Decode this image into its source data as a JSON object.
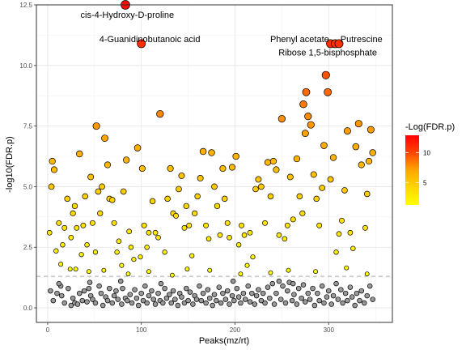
{
  "chart_data": {
    "type": "scatter",
    "xlabel": "Peaks(mz/rt)",
    "ylabel": "-log10(FDR.p)",
    "xlim": [
      -12,
      368
    ],
    "ylim": [
      -0.6,
      12.5
    ],
    "xticks": [
      0,
      100,
      200,
      300
    ],
    "yticks": [
      0.0,
      2.5,
      5.0,
      7.5,
      10.0,
      12.5
    ],
    "ytick_labels": [
      "0.0",
      "2.5",
      "5.0",
      "7.5",
      "10.0",
      "12.5"
    ],
    "grid": true,
    "threshold": 1.3,
    "legend": {
      "title": "-Log(FDR.p)",
      "ticks": [
        5,
        10
      ],
      "range": [
        1.3,
        12.9
      ],
      "colors": [
        "#ffff00",
        "#ffd700",
        "#ffa500",
        "#ff4500",
        "#ff0000"
      ],
      "position": "right"
    },
    "annotations": [
      {
        "text": "cis-4-Hydroxy-D-proline",
        "x": 85,
        "y": 12.1,
        "anchor": "middle"
      },
      {
        "text": "4-Guanidinobutanoic acid",
        "x": 109,
        "y": 11.1,
        "anchor": "middle"
      },
      {
        "text": "Phenyl acetate",
        "x": 269,
        "y": 11.1,
        "anchor": "middle"
      },
      {
        "text": "Putrescine",
        "x": 335,
        "y": 11.1,
        "anchor": "middle"
      },
      {
        "text": "Ribose 1,5-bisphosphate",
        "x": 299,
        "y": 10.55,
        "anchor": "middle"
      }
    ],
    "points": [
      [
        3,
        0.7
      ],
      [
        6,
        0.3
      ],
      [
        10,
        0.6
      ],
      [
        14,
        0.9
      ],
      [
        15,
        0.5
      ],
      [
        18,
        0.2
      ],
      [
        22,
        0.8
      ],
      [
        25,
        0.1
      ],
      [
        27,
        0.4
      ],
      [
        29,
        0.2
      ],
      [
        32,
        0.15
      ],
      [
        34,
        0.6
      ],
      [
        37,
        0.3
      ],
      [
        39,
        0.7
      ],
      [
        42,
        0.25
      ],
      [
        44,
        0.8
      ],
      [
        46,
        0.5
      ],
      [
        48,
        0.35
      ],
      [
        51,
        0.2
      ],
      [
        55,
        0.9
      ],
      [
        57,
        0.6
      ],
      [
        59,
        0.1
      ],
      [
        62,
        0.45
      ],
      [
        64,
        0.3
      ],
      [
        66,
        0.8
      ],
      [
        69,
        0.2
      ],
      [
        71,
        0.5
      ],
      [
        73,
        0.7
      ],
      [
        75,
        0.35
      ],
      [
        79,
        0.15
      ],
      [
        80,
        0.8
      ],
      [
        83,
        0.4
      ],
      [
        85,
        0.3
      ],
      [
        88,
        0.55
      ],
      [
        90,
        0.2
      ],
      [
        93,
        0.75
      ],
      [
        95,
        0.4
      ],
      [
        97,
        0.1
      ],
      [
        100,
        0.6
      ],
      [
        102,
        0.3
      ],
      [
        104,
        0.9
      ],
      [
        106,
        0.2
      ],
      [
        108,
        0.5
      ],
      [
        111,
        0.7
      ],
      [
        113,
        0.35
      ],
      [
        115,
        0.15
      ],
      [
        118,
        0.6
      ],
      [
        120,
        0.3
      ],
      [
        123,
        0.2
      ],
      [
        125,
        0.8
      ],
      [
        127,
        0.4
      ],
      [
        130,
        0.55
      ],
      [
        132,
        0.2
      ],
      [
        134,
        0.7
      ],
      [
        136,
        0.35
      ],
      [
        139,
        0.1
      ],
      [
        141,
        0.6
      ],
      [
        143,
        0.45
      ],
      [
        146,
        0.2
      ],
      [
        148,
        0.8
      ],
      [
        150,
        0.3
      ],
      [
        152,
        0.65
      ],
      [
        155,
        0.15
      ],
      [
        157,
        0.5
      ],
      [
        159,
        0.35
      ],
      [
        162,
        0.9
      ],
      [
        164,
        0.3
      ],
      [
        166,
        0.6
      ],
      [
        169,
        0.2
      ],
      [
        171,
        0.75
      ],
      [
        173,
        0.4
      ],
      [
        176,
        0.1
      ],
      [
        178,
        0.55
      ],
      [
        180,
        0.3
      ],
      [
        183,
        0.85
      ],
      [
        185,
        0.2
      ],
      [
        187,
        0.6
      ],
      [
        190,
        0.35
      ],
      [
        192,
        0.7
      ],
      [
        194,
        0.15
      ],
      [
        197,
        0.5
      ],
      [
        199,
        0.3
      ],
      [
        202,
        0.8
      ],
      [
        204,
        0.45
      ],
      [
        206,
        0.2
      ],
      [
        209,
        0.6
      ],
      [
        211,
        0.35
      ],
      [
        214,
        0.9
      ],
      [
        216,
        0.25
      ],
      [
        218,
        0.6
      ],
      [
        221,
        0.15
      ],
      [
        223,
        0.5
      ],
      [
        225,
        0.75
      ],
      [
        228,
        0.3
      ],
      [
        230,
        0.6
      ],
      [
        232,
        0.2
      ],
      [
        235,
        0.85
      ],
      [
        237,
        0.4
      ],
      [
        240,
        1.0
      ],
      [
        242,
        0.15
      ],
      [
        244,
        0.6
      ],
      [
        247,
        1.1
      ],
      [
        249,
        0.35
      ],
      [
        251,
        0.9
      ],
      [
        254,
        0.2
      ],
      [
        256,
        0.7
      ],
      [
        258,
        1.05
      ],
      [
        261,
        0.3
      ],
      [
        263,
        0.55
      ],
      [
        266,
        0.15
      ],
      [
        268,
        0.8
      ],
      [
        271,
        0.4
      ],
      [
        273,
        0.95
      ],
      [
        275,
        0.25
      ],
      [
        278,
        0.6
      ],
      [
        280,
        0.35
      ],
      [
        283,
        0.8
      ],
      [
        285,
        0.1
      ],
      [
        288,
        0.6
      ],
      [
        290,
        0.3
      ],
      [
        293,
        0.9
      ],
      [
        295,
        0.2
      ],
      [
        298,
        0.45
      ],
      [
        300,
        0.7
      ],
      [
        303,
        0.15
      ],
      [
        305,
        0.5
      ],
      [
        308,
        1.0
      ],
      [
        310,
        0.35
      ],
      [
        313,
        0.75
      ],
      [
        315,
        0.2
      ],
      [
        318,
        0.6
      ],
      [
        320,
        0.3
      ],
      [
        323,
        0.85
      ],
      [
        325,
        0.45
      ],
      [
        328,
        0.1
      ],
      [
        330,
        0.6
      ],
      [
        333,
        0.3
      ],
      [
        335,
        0.7
      ],
      [
        338,
        0.2
      ],
      [
        341,
        0.5
      ],
      [
        344,
        0.9
      ],
      [
        347,
        0.35
      ],
      [
        12,
        1.0
      ],
      [
        45,
        1.05
      ],
      [
        78,
        1.1
      ],
      [
        121,
        1.0
      ],
      [
        198,
        1.1
      ],
      [
        262,
        1.0
      ],
      [
        2,
        3.1
      ],
      [
        4,
        5.0
      ],
      [
        5,
        6.05
      ],
      [
        7,
        5.7
      ],
      [
        9,
        2.35
      ],
      [
        12,
        3.5
      ],
      [
        14,
        1.8
      ],
      [
        16,
        2.6
      ],
      [
        18,
        3.3
      ],
      [
        21,
        4.5
      ],
      [
        24,
        1.6
      ],
      [
        25,
        2.9
      ],
      [
        27,
        3.9
      ],
      [
        29,
        4.2
      ],
      [
        31,
        3.3
      ],
      [
        34,
        6.35
      ],
      [
        36,
        2.2
      ],
      [
        38,
        3.4
      ],
      [
        40,
        4.6
      ],
      [
        42,
        2.6
      ],
      [
        44,
        1.5
      ],
      [
        46,
        5.4
      ],
      [
        48,
        3.5
      ],
      [
        51,
        2.3
      ],
      [
        52,
        7.5
      ],
      [
        54,
        4.8
      ],
      [
        56,
        3.9
      ],
      [
        58,
        5.0
      ],
      [
        61,
        7.0
      ],
      [
        64,
        5.9
      ],
      [
        66,
        4.5
      ],
      [
        69,
        4.45
      ],
      [
        71,
        3.5
      ],
      [
        74,
        2.3
      ],
      [
        76,
        2.75
      ],
      [
        79,
        1.75
      ],
      [
        81,
        4.8
      ],
      [
        84,
        6.1
      ],
      [
        87,
        3.15
      ],
      [
        89,
        2.5
      ],
      [
        92,
        2.0
      ],
      [
        96,
        6.6
      ],
      [
        99,
        2.1
      ],
      [
        101,
        5.75
      ],
      [
        103,
        3.4
      ],
      [
        106,
        2.5
      ],
      [
        108,
        3.1
      ],
      [
        112,
        4.4
      ],
      [
        115,
        3.1
      ],
      [
        118,
        2.9
      ],
      [
        120,
        8.0
      ],
      [
        125,
        2.3
      ],
      [
        128,
        4.5
      ],
      [
        131,
        5.75
      ],
      [
        134,
        3.9
      ],
      [
        137,
        3.8
      ],
      [
        140,
        4.9
      ],
      [
        143,
        5.45
      ],
      [
        146,
        3.3
      ],
      [
        148,
        4.2
      ],
      [
        151,
        3.4
      ],
      [
        154,
        2.15
      ],
      [
        157,
        3.9
      ],
      [
        160,
        4.6
      ],
      [
        163,
        5.35
      ],
      [
        166,
        6.45
      ],
      [
        169,
        3.4
      ],
      [
        172,
        2.85
      ],
      [
        175,
        6.4
      ],
      [
        178,
        5.0
      ],
      [
        181,
        4.2
      ],
      [
        184,
        3.0
      ],
      [
        187,
        5.75
      ],
      [
        189,
        4.5
      ],
      [
        192,
        3.5
      ],
      [
        194,
        2.9
      ],
      [
        197,
        5.8
      ],
      [
        201,
        6.25
      ],
      [
        204,
        2.6
      ],
      [
        207,
        3.4
      ],
      [
        210,
        3.0
      ],
      [
        213,
        1.75
      ],
      [
        216,
        3.1
      ],
      [
        219,
        2.1
      ],
      [
        222,
        4.9
      ],
      [
        225,
        5.3
      ],
      [
        228,
        5.0
      ],
      [
        232,
        3.5
      ],
      [
        235,
        6.0
      ],
      [
        238,
        4.6
      ],
      [
        241,
        6.05
      ],
      [
        244,
        5.7
      ],
      [
        247,
        3.0
      ],
      [
        250,
        7.8
      ],
      [
        253,
        2.85
      ],
      [
        256,
        3.4
      ],
      [
        259,
        5.4
      ],
      [
        262,
        3.65
      ],
      [
        266,
        6.15
      ],
      [
        269,
        4.6
      ],
      [
        272,
        3.9
      ],
      [
        273,
        8.4
      ],
      [
        275,
        7.2
      ],
      [
        276,
        8.9
      ],
      [
        278,
        7.9
      ],
      [
        281,
        7.55
      ],
      [
        284,
        5.5
      ],
      [
        287,
        4.5
      ],
      [
        290,
        3.4
      ],
      [
        293,
        4.95
      ],
      [
        295,
        6.7
      ],
      [
        297,
        9.6
      ],
      [
        299,
        8.9
      ],
      [
        302,
        5.3
      ],
      [
        305,
        6.2
      ],
      [
        308,
        2.3
      ],
      [
        311,
        3.05
      ],
      [
        314,
        3.6
      ],
      [
        317,
        4.85
      ],
      [
        320,
        7.3
      ],
      [
        323,
        3.1
      ],
      [
        326,
        2.45
      ],
      [
        329,
        6.65
      ],
      [
        332,
        7.6
      ],
      [
        335,
        5.9
      ],
      [
        339,
        3.3
      ],
      [
        341,
        4.7
      ],
      [
        343,
        6.05
      ],
      [
        345,
        7.35
      ],
      [
        347,
        6.4
      ],
      [
        60,
        1.55
      ],
      [
        86,
        1.4
      ],
      [
        133,
        1.35
      ],
      [
        149,
        1.6
      ],
      [
        173,
        1.55
      ],
      [
        206,
        1.4
      ],
      [
        238,
        1.45
      ],
      [
        257,
        1.55
      ],
      [
        286,
        1.5
      ],
      [
        319,
        1.65
      ],
      [
        341,
        1.4
      ],
      [
        30,
        1.6
      ],
      [
        108,
        1.5
      ],
      [
        83,
        12.5
      ],
      [
        100,
        10.9
      ],
      [
        302,
        10.9
      ],
      [
        307,
        10.9
      ],
      [
        311,
        10.9
      ]
    ]
  }
}
